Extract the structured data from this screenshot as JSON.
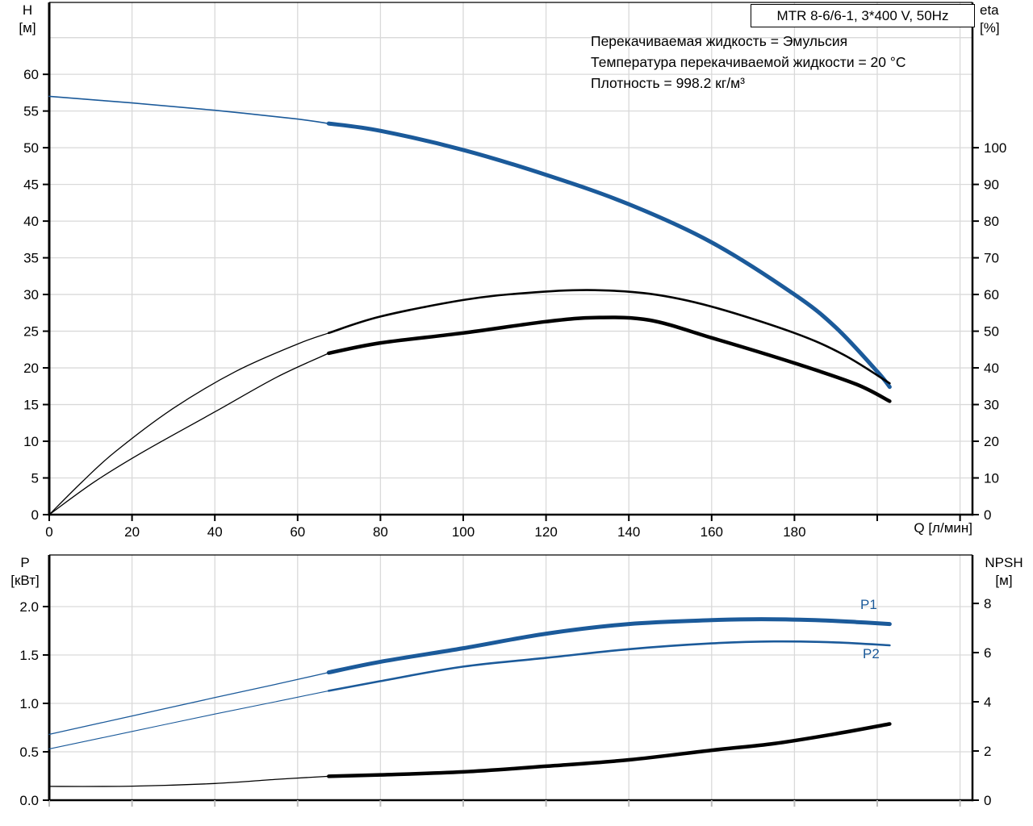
{
  "title": "MTR 8-6/6-1, 3*400 V, 50Hz",
  "info_lines": [
    "Перекачиваемая жидкость = Эмульсия",
    "Температура перекачиваемой жидкости = 20 °C",
    "Плотность = 998.2 кг/м³"
  ],
  "colors": {
    "blue": "#1B5A9A",
    "black": "#000000",
    "grid": "#D9D9D9",
    "frame": "#000000",
    "background": "#FFFFFF"
  },
  "chart_data": [
    {
      "id": "head-efficiency",
      "type": "line",
      "title": "MTR 8-6/6-1, 3*400 V, 50Hz",
      "xlabel": "Q [л/мин]",
      "ylabel_left_lines": [
        "H",
        "[м]"
      ],
      "ylabel_right_lines": [
        "eta",
        "[%]"
      ],
      "xlim": [
        0,
        223
      ],
      "ylim_left": [
        0,
        69.8
      ],
      "ylim_right": [
        0,
        139.6
      ],
      "grid": true,
      "x_ticks": [
        {
          "v": 0,
          "l": "0"
        },
        {
          "v": 20,
          "l": "20"
        },
        {
          "v": 40,
          "l": "40"
        },
        {
          "v": 60,
          "l": "60"
        },
        {
          "v": 80,
          "l": "80"
        },
        {
          "v": 100,
          "l": "100"
        },
        {
          "v": 120,
          "l": "120"
        },
        {
          "v": 140,
          "l": "140"
        },
        {
          "v": 160,
          "l": "160"
        },
        {
          "v": 180,
          "l": "180"
        },
        {
          "v": 200,
          "l": ""
        },
        {
          "v": 220,
          "l": ""
        }
      ],
      "y_ticks_left": [
        {
          "v": 0,
          "l": "0"
        },
        {
          "v": 5,
          "l": "5"
        },
        {
          "v": 10,
          "l": "10"
        },
        {
          "v": 15,
          "l": "15"
        },
        {
          "v": 20,
          "l": "20"
        },
        {
          "v": 25,
          "l": "25"
        },
        {
          "v": 30,
          "l": "30"
        },
        {
          "v": 35,
          "l": "35"
        },
        {
          "v": 40,
          "l": "40"
        },
        {
          "v": 45,
          "l": "45"
        },
        {
          "v": 50,
          "l": "50"
        },
        {
          "v": 55,
          "l": "55"
        },
        {
          "v": 60,
          "l": "60"
        }
      ],
      "y_grid_left": [
        5,
        10,
        15,
        20,
        25,
        30,
        35,
        40,
        45,
        50,
        55,
        60,
        65
      ],
      "y_ticks_right": [
        {
          "v": 0,
          "l": "0"
        },
        {
          "v": 10,
          "l": "10"
        },
        {
          "v": 20,
          "l": "20"
        },
        {
          "v": 30,
          "l": "30"
        },
        {
          "v": 40,
          "l": "40"
        },
        {
          "v": 50,
          "l": "50"
        },
        {
          "v": 60,
          "l": "60"
        },
        {
          "v": 70,
          "l": "70"
        },
        {
          "v": 80,
          "l": "80"
        },
        {
          "v": 90,
          "l": "90"
        },
        {
          "v": 100,
          "l": "100"
        }
      ],
      "series": [
        {
          "name": "H-Q curve",
          "label": "",
          "axis": "left",
          "color": "blue",
          "split": 67.5,
          "w_thin": 1.6,
          "w_thick": 5,
          "points": [
            [
              0,
              57
            ],
            [
              20,
              56.1
            ],
            [
              40,
              55.1
            ],
            [
              60,
              53.9
            ],
            [
              67.5,
              53.3
            ],
            [
              80,
              52.3
            ],
            [
              100,
              49.7
            ],
            [
              120,
              46.3
            ],
            [
              140,
              42.3
            ],
            [
              160,
              37.1
            ],
            [
              180,
              30.0
            ],
            [
              190,
              25.5
            ],
            [
              200,
              19.5
            ],
            [
              203,
              17.4
            ]
          ]
        },
        {
          "name": "eta pump curve",
          "label": "",
          "axis": "right",
          "color": "black",
          "split": 67.5,
          "w_thin": 1.3,
          "w_thick": 2.6,
          "points": [
            [
              0,
              0
            ],
            [
              8,
              9
            ],
            [
              16,
              17.2
            ],
            [
              30,
              29
            ],
            [
              45,
              39
            ],
            [
              60,
              46.5
            ],
            [
              67.5,
              49.5
            ],
            [
              80,
              54
            ],
            [
              100,
              58.5
            ],
            [
              115,
              60.4
            ],
            [
              130,
              61.2
            ],
            [
              145,
              60.2
            ],
            [
              160,
              56.7
            ],
            [
              180,
              49.5
            ],
            [
              192,
              43.5
            ],
            [
              203,
              35.8
            ]
          ]
        },
        {
          "name": "eta pump+motor curve",
          "label": "",
          "axis": "right",
          "color": "black",
          "split": 67.5,
          "w_thin": 1.3,
          "w_thick": 4.5,
          "points": [
            [
              0,
              0
            ],
            [
              11,
              9
            ],
            [
              22.8,
              17.2
            ],
            [
              40,
              28
            ],
            [
              55,
              37.5
            ],
            [
              67.5,
              44
            ],
            [
              80,
              46.8
            ],
            [
              100,
              49.5
            ],
            [
              120,
              52.6
            ],
            [
              132,
              53.7
            ],
            [
              145,
              53
            ],
            [
              160,
              48.2
            ],
            [
              180,
              41.3
            ],
            [
              195,
              35.5
            ],
            [
              203,
              30.9
            ]
          ]
        }
      ]
    },
    {
      "id": "power-npsh",
      "type": "line",
      "title": "",
      "xlabel": "",
      "ylabel_left_lines": [
        "P",
        "[кВт]"
      ],
      "ylabel_right_lines": [
        "NPSH",
        "[м]"
      ],
      "xlim": [
        0,
        223
      ],
      "ylim_left": [
        0,
        2.533
      ],
      "ylim_right": [
        0,
        9.97
      ],
      "grid": true,
      "x_ticks": [
        {
          "v": 0,
          "l": ""
        },
        {
          "v": 20,
          "l": ""
        },
        {
          "v": 40,
          "l": ""
        },
        {
          "v": 60,
          "l": ""
        },
        {
          "v": 80,
          "l": ""
        },
        {
          "v": 100,
          "l": ""
        },
        {
          "v": 120,
          "l": ""
        },
        {
          "v": 140,
          "l": ""
        },
        {
          "v": 160,
          "l": ""
        },
        {
          "v": 180,
          "l": ""
        },
        {
          "v": 200,
          "l": ""
        },
        {
          "v": 220,
          "l": ""
        }
      ],
      "y_ticks_left": [
        {
          "v": 0,
          "l": "0.0"
        },
        {
          "v": 0.5,
          "l": "0.5"
        },
        {
          "v": 1.0,
          "l": "1.0"
        },
        {
          "v": 1.5,
          "l": "1.5"
        },
        {
          "v": 2.0,
          "l": "2.0"
        }
      ],
      "y_grid_left": [
        0.5,
        1.0,
        1.5,
        2.0
      ],
      "y_ticks_right": [
        {
          "v": 0,
          "l": "0"
        },
        {
          "v": 2,
          "l": "2"
        },
        {
          "v": 4,
          "l": "4"
        },
        {
          "v": 6,
          "l": "6"
        },
        {
          "v": 8,
          "l": "8"
        }
      ],
      "series": [
        {
          "name": "P1 power input",
          "label": "P1",
          "axis": "left",
          "color": "blue",
          "split": 67.5,
          "w_thin": 1.3,
          "w_thick": 5,
          "points": [
            [
              0,
              0.68
            ],
            [
              20,
              0.87
            ],
            [
              40,
              1.06
            ],
            [
              55,
              1.2
            ],
            [
              67.5,
              1.32
            ],
            [
              80,
              1.43
            ],
            [
              100,
              1.57
            ],
            [
              120,
              1.72
            ],
            [
              140,
              1.82
            ],
            [
              160,
              1.86
            ],
            [
              172,
              1.87
            ],
            [
              185,
              1.86
            ],
            [
              195,
              1.84
            ],
            [
              203,
              1.82
            ]
          ]
        },
        {
          "name": "P2 shaft power",
          "label": "P2",
          "axis": "left",
          "color": "blue",
          "split": 67.5,
          "w_thin": 1.1,
          "w_thick": 2.6,
          "points": [
            [
              0,
              0.53
            ],
            [
              20,
              0.71
            ],
            [
              40,
              0.89
            ],
            [
              55,
              1.02
            ],
            [
              67.5,
              1.13
            ],
            [
              80,
              1.23
            ],
            [
              100,
              1.38
            ],
            [
              120,
              1.47
            ],
            [
              140,
              1.56
            ],
            [
              160,
              1.62
            ],
            [
              175,
              1.64
            ],
            [
              190,
              1.63
            ],
            [
              203,
              1.6
            ]
          ]
        },
        {
          "name": "NPSH curve",
          "label": "",
          "axis": "right",
          "color": "black",
          "split": 67.5,
          "w_thin": 1.3,
          "w_thick": 4.5,
          "points": [
            [
              0,
              0.56
            ],
            [
              20,
              0.57
            ],
            [
              40,
              0.68
            ],
            [
              55,
              0.85
            ],
            [
              67.5,
              0.97
            ],
            [
              80,
              1.03
            ],
            [
              100,
              1.15
            ],
            [
              120,
              1.38
            ],
            [
              140,
              1.64
            ],
            [
              160,
              2.03
            ],
            [
              175,
              2.3
            ],
            [
              190,
              2.7
            ],
            [
              203,
              3.1
            ]
          ]
        }
      ]
    }
  ]
}
